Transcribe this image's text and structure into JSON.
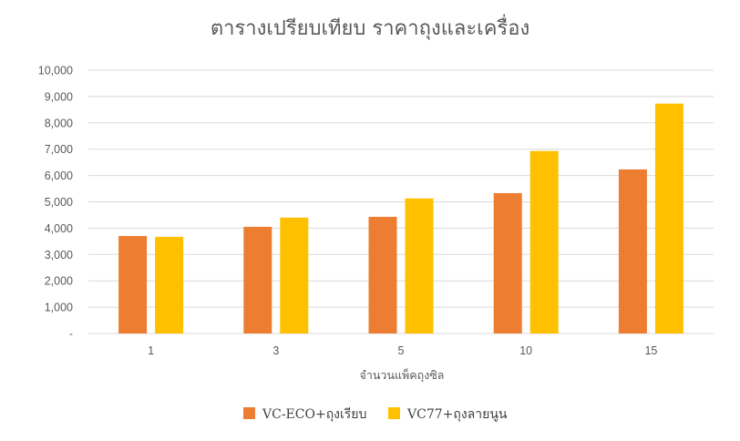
{
  "chart_data": {
    "type": "bar",
    "title": "ตารางเปรียบเทียบ ราคาถุงและเครื่อง",
    "xlabel": "จำนวนแพ็คถุงซิล",
    "ylabel": "",
    "categories": [
      "1",
      "3",
      "5",
      "10",
      "15"
    ],
    "ylim": [
      0,
      10000
    ],
    "yticks": [
      0,
      1000,
      2000,
      3000,
      4000,
      5000,
      6000,
      7000,
      8000,
      9000,
      10000
    ],
    "ytick_labels": [
      "-",
      "1,000",
      "2,000",
      "3,000",
      "4,000",
      "5,000",
      "6,000",
      "7,000",
      "8,000",
      "9,000",
      "10,000"
    ],
    "grid": true,
    "legend_position": "bottom",
    "series": [
      {
        "name": "VC-ECO+ถุงเรียบ",
        "color": "#ED7D31",
        "values": [
          3700,
          4050,
          4430,
          5330,
          6230
        ]
      },
      {
        "name": "VC77+ถุงลายนูน",
        "color": "#FFC000",
        "values": [
          3670,
          4400,
          5130,
          6930,
          8730
        ]
      }
    ]
  }
}
